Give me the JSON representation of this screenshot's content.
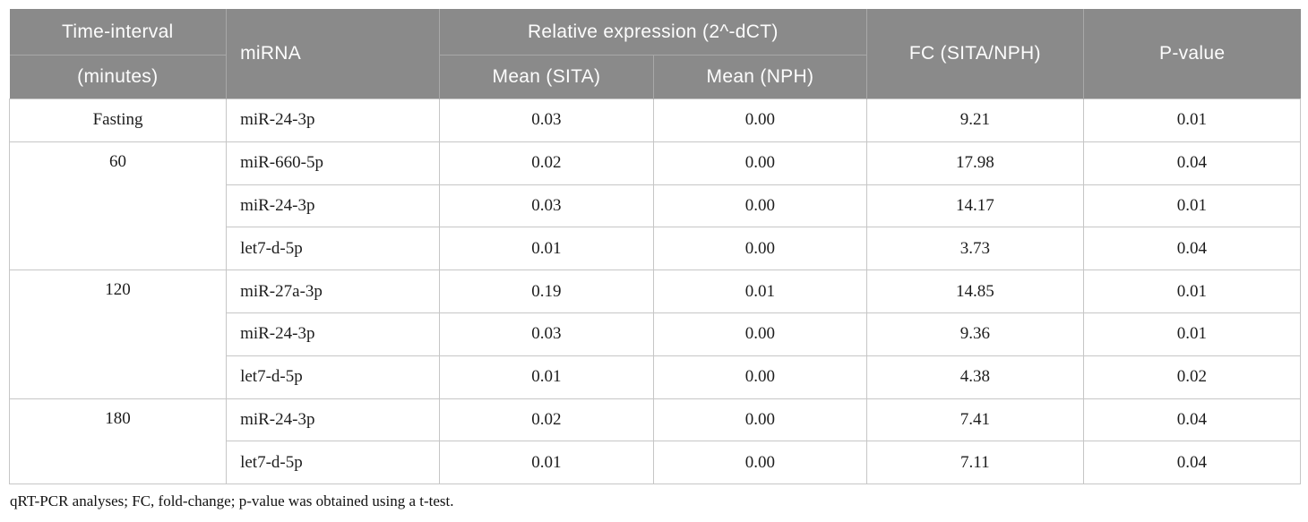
{
  "table": {
    "header": {
      "time_line1": "Time-interval",
      "time_line2": "(minutes)",
      "mirna": "miRNA",
      "rel_expr": "Relative expression (2^-dCT)",
      "mean_sita": "Mean (SITA)",
      "mean_nph": "Mean (NPH)",
      "fc": "FC (SITA/NPH)",
      "pvalue": "P-value"
    },
    "rows": [
      {
        "time": "Fasting",
        "mirna": "miR-24-3p",
        "mean_sita": "0.03",
        "mean_nph": "0.00",
        "fc": "9.21",
        "p": "0.01"
      },
      {
        "time": "60",
        "mirna": "miR-660-5p",
        "mean_sita": "0.02",
        "mean_nph": "0.00",
        "fc": "17.98",
        "p": "0.04"
      },
      {
        "time": "",
        "mirna": "miR-24-3p",
        "mean_sita": "0.03",
        "mean_nph": "0.00",
        "fc": "14.17",
        "p": "0.01"
      },
      {
        "time": "",
        "mirna": "let7-d-5p",
        "mean_sita": "0.01",
        "mean_nph": "0.00",
        "fc": "3.73",
        "p": "0.04"
      },
      {
        "time": "120",
        "mirna": "miR-27a-3p",
        "mean_sita": "0.19",
        "mean_nph": "0.01",
        "fc": "14.85",
        "p": "0.01"
      },
      {
        "time": "",
        "mirna": "miR-24-3p",
        "mean_sita": "0.03",
        "mean_nph": "0.00",
        "fc": "9.36",
        "p": "0.01"
      },
      {
        "time": "",
        "mirna": "let7-d-5p",
        "mean_sita": "0.01",
        "mean_nph": "0.00",
        "fc": "4.38",
        "p": "0.02"
      },
      {
        "time": "180",
        "mirna": "miR-24-3p",
        "mean_sita": "0.02",
        "mean_nph": "0.00",
        "fc": "7.41",
        "p": "0.04"
      },
      {
        "time": "",
        "mirna": "let7-d-5p",
        "mean_sita": "0.01",
        "mean_nph": "0.00",
        "fc": "7.11",
        "p": "0.04"
      }
    ],
    "footnote": "qRT-PCR analyses; FC, fold-change; p-value was obtained using a t-test."
  },
  "colors": {
    "header_bg": "#8a8a8a",
    "header_divider": "#a8a8a8",
    "header_text": "#fdfdfd",
    "body_border": "#c6c6c6",
    "body_text": "#1d1d1d"
  }
}
